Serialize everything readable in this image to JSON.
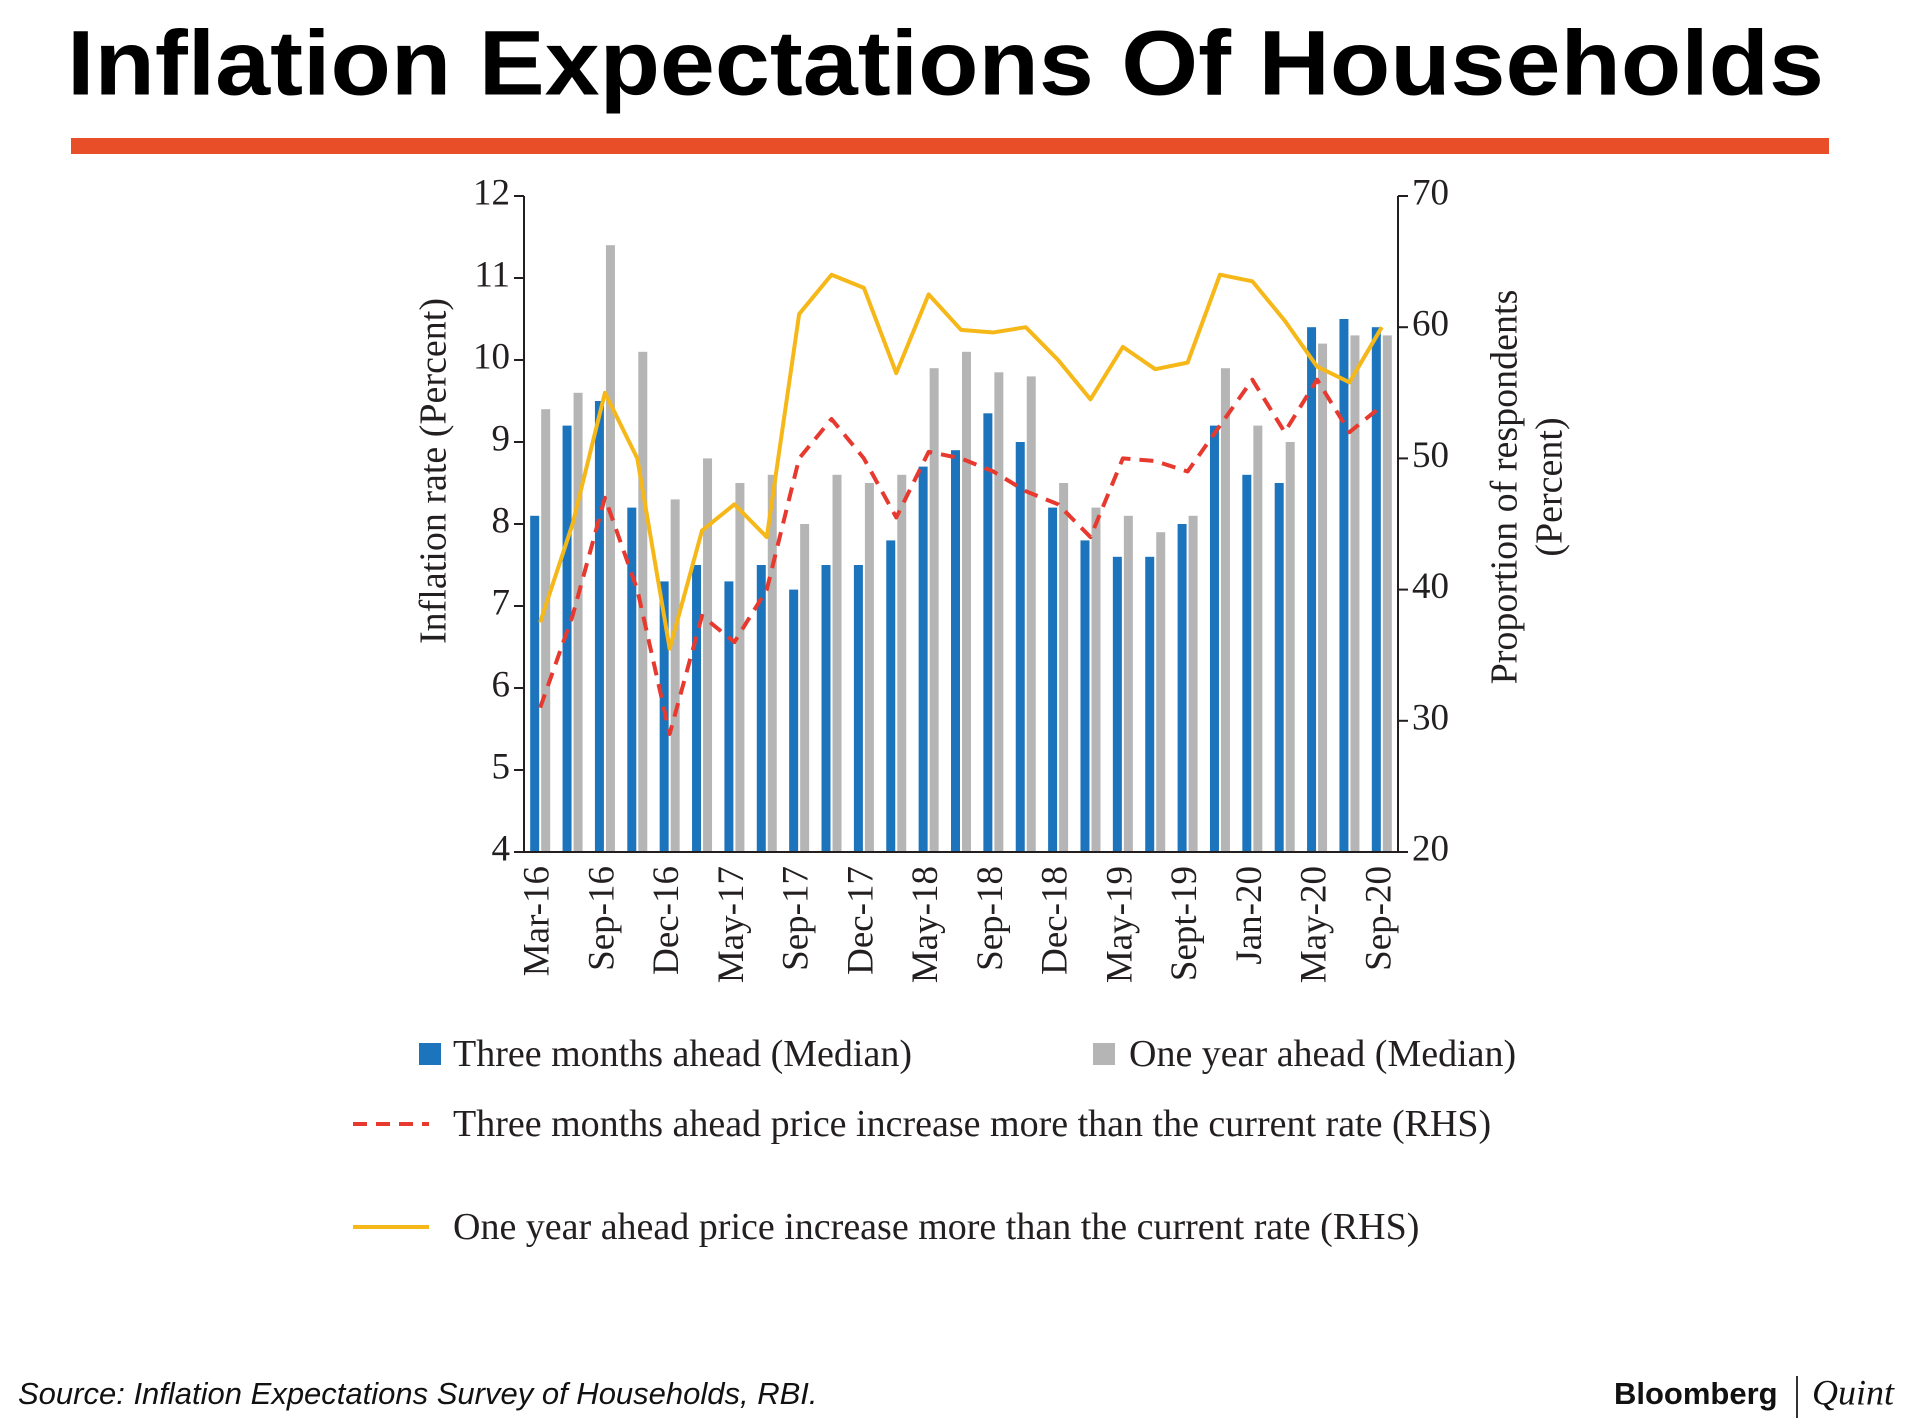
{
  "chart_data": {
    "type": "bar_line",
    "title": "Inflation Expectations Of Households",
    "y_label": "Inflation rate (Percent)",
    "y2_label": [
      "Proportion of respondents",
      "(Percent)"
    ],
    "categories": [
      "Mar-16",
      null,
      "Sep-16",
      null,
      "Dec-16",
      null,
      "May-17",
      null,
      "Sep-17",
      null,
      "Dec-17",
      null,
      "May-18",
      null,
      "Sep-18",
      null,
      "Dec-18",
      null,
      "May-19",
      null,
      "Sept-19",
      null,
      "Jan-20",
      null,
      "May-20",
      null,
      "Sep-20"
    ],
    "ylim": [
      4,
      12
    ],
    "yticks": [
      4,
      5,
      6,
      7,
      8,
      9,
      10,
      11,
      12
    ],
    "y2lim": [
      20,
      70
    ],
    "y2ticks": [
      20,
      30,
      40,
      50,
      60,
      70
    ],
    "series": [
      {
        "name": "Three months ahead (Median)",
        "type": "bar",
        "color": "#1c75bc",
        "values": [
          8.1,
          9.2,
          9.5,
          8.2,
          7.3,
          7.5,
          7.3,
          7.5,
          7.2,
          7.5,
          7.5,
          7.8,
          8.7,
          8.9,
          9.35,
          9.0,
          8.2,
          7.8,
          7.6,
          7.6,
          8.0,
          9.2,
          8.6,
          8.5,
          10.4,
          10.5,
          10.4
        ]
      },
      {
        "name": "One year ahead (Median)",
        "type": "bar",
        "color": "#b5b5b5",
        "values": [
          9.4,
          9.6,
          11.4,
          10.1,
          8.3,
          8.8,
          8.5,
          8.6,
          8.0,
          8.6,
          8.5,
          8.6,
          9.9,
          10.1,
          9.85,
          9.8,
          8.5,
          8.2,
          8.1,
          7.9,
          8.1,
          9.9,
          9.2,
          9.0,
          10.2,
          10.3,
          10.3
        ]
      },
      {
        "name": "Three months ahead price increase more than the current rate (RHS)",
        "type": "line",
        "dashed": true,
        "axis": "y2",
        "color": "#e8392f",
        "values": [
          31,
          38,
          47,
          40,
          29,
          38,
          36,
          40,
          50,
          53,
          50,
          45.5,
          50.5,
          50,
          49,
          47.5,
          46.5,
          44,
          50,
          49.8,
          49,
          52.5,
          56,
          52,
          56,
          52,
          54
        ]
      },
      {
        "name": "One year ahead price increase more than the current rate (RHS)",
        "type": "line",
        "axis": "y2",
        "color": "#f6b818",
        "values": [
          37.5,
          45,
          55,
          50,
          35.5,
          44.5,
          46.5,
          44,
          61,
          64,
          63,
          56.5,
          62.5,
          59.8,
          59.6,
          60,
          57.5,
          54.5,
          58.5,
          56.8,
          57.3,
          64,
          63.5,
          60.5,
          57,
          55.8,
          60
        ]
      }
    ],
    "source": "Source: Inflation Expectations Survey of Households, RBI.",
    "logo": [
      "Bloomberg",
      "Quint"
    ]
  }
}
